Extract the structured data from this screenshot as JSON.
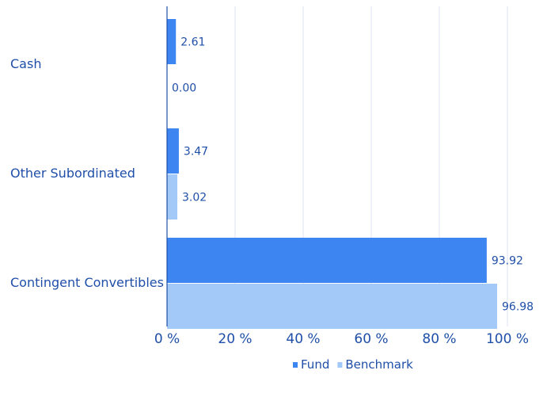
{
  "chart_data": {
    "type": "bar",
    "orientation": "horizontal",
    "categories": [
      "Cash",
      "Other Subordinated",
      "Contingent Convertibles"
    ],
    "series": [
      {
        "name": "Fund",
        "values": [
          2.61,
          3.47,
          93.92
        ],
        "labels": [
          "2.61",
          "3.47",
          "93.92"
        ],
        "color": "#3d85f0"
      },
      {
        "name": "Benchmark",
        "values": [
          0.0,
          3.02,
          96.98
        ],
        "labels": [
          "0.00",
          "3.02",
          "96.98"
        ],
        "color": "#a3c9f8"
      }
    ],
    "xlim": [
      0,
      100
    ],
    "xticks": [
      0,
      20,
      40,
      60,
      80,
      100
    ],
    "xtick_labels": [
      "0 %",
      "20 %",
      "40 %",
      "60 %",
      "80 %",
      "100 %"
    ],
    "grid": "vertical",
    "legend_position": "bottom-right",
    "title": "",
    "xlabel": "",
    "ylabel": ""
  },
  "colors": {
    "text": "#1f4fa8",
    "axis": "#1f4fa8",
    "grid": "#dde6f2"
  }
}
